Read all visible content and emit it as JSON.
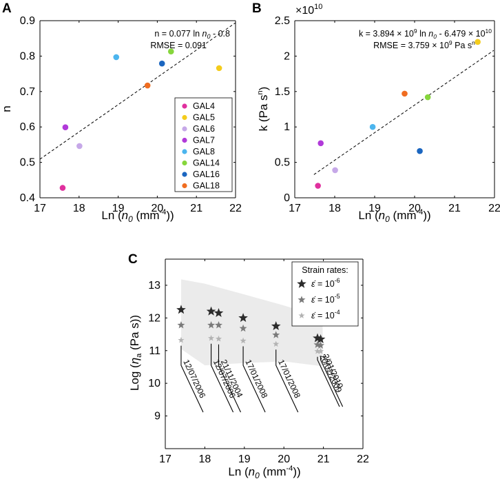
{
  "chart_data": [
    {
      "panel": "A",
      "type": "scatter",
      "xlabel": "Ln (n0 (mm-4))",
      "xlabel_parts": [
        "Ln (",
        "n",
        "0",
        " (mm",
        "-4",
        "))"
      ],
      "ylabel": "n",
      "xlim": [
        17,
        22
      ],
      "ylim": [
        0.4,
        0.9
      ],
      "xticks": [
        "17",
        "18",
        "19",
        "20",
        "21",
        "22"
      ],
      "yticks": [
        "0.4",
        "0.5",
        "0.6",
        "0.7",
        "0.8",
        "0.9"
      ],
      "annotation": [
        "n = 0.077 ln n0 - 0.8",
        "RMSE = 0.091"
      ],
      "ann_parts": [
        "n = 0.077 ln ",
        "n",
        "0",
        " - 0.8"
      ],
      "fit": {
        "slope": 0.077,
        "intercept": -0.8
      },
      "legend": "inside-lower-right",
      "series": [
        {
          "name": "GAL4",
          "color": "#e0309e",
          "x": 17.58,
          "y": 0.428
        },
        {
          "name": "GAL5",
          "color": "#f4cc1c",
          "x": 21.58,
          "y": 0.766
        },
        {
          "name": "GAL6",
          "color": "#c6a8e8",
          "x": 18.01,
          "y": 0.546
        },
        {
          "name": "GAL7",
          "color": "#b13ad9",
          "x": 17.65,
          "y": 0.599
        },
        {
          "name": "GAL8",
          "color": "#4cb5ee",
          "x": 18.95,
          "y": 0.797
        },
        {
          "name": "GAL14",
          "color": "#86d63c",
          "x": 20.35,
          "y": 0.813
        },
        {
          "name": "GAL16",
          "color": "#1b66c0",
          "x": 20.12,
          "y": 0.779
        },
        {
          "name": "GAL18",
          "color": "#f06d20",
          "x": 19.75,
          "y": 0.717
        }
      ]
    },
    {
      "panel": "B",
      "type": "scatter",
      "xlabel": "Ln (n0 (mm-4))",
      "xlabel_parts": [
        "Ln (",
        "n",
        "0",
        " (mm",
        "-4",
        "))"
      ],
      "ylabel": "k (Pa s^n)",
      "ylabel_parts": [
        "k (Pa s",
        "n",
        ")"
      ],
      "xlim": [
        17,
        22
      ],
      "ylim": [
        0,
        2.5
      ],
      "xticks": [
        "17",
        "18",
        "19",
        "20",
        "21",
        "22"
      ],
      "yticks": [
        "0",
        "0.5",
        "1",
        "1.5",
        "2",
        "2.5"
      ],
      "multiplier": [
        "×10",
        "10"
      ],
      "annotation": [
        "k = 3.894 × 10^9 ln n0 - 6.479 × 10^10",
        "RMSE = 3.759 × 10^9 Pa s^n"
      ],
      "ann1_parts": [
        "k = 3.894 × 10",
        "9",
        " ln ",
        "n",
        "0",
        " - 6.479 × 10",
        "10"
      ],
      "ann2_parts": [
        "RMSE = 3.759 × 10",
        "9",
        " Pa s",
        "n"
      ],
      "fit": {
        "slope": 0.3894,
        "intercept": -6.479
      },
      "series": [
        {
          "name": "GAL4",
          "color": "#e0309e",
          "x": 17.58,
          "y": 0.17
        },
        {
          "name": "GAL5",
          "color": "#f4cc1c",
          "x": 21.58,
          "y": 2.2
        },
        {
          "name": "GAL6",
          "color": "#c6a8e8",
          "x": 18.01,
          "y": 0.39
        },
        {
          "name": "GAL7",
          "color": "#b13ad9",
          "x": 17.65,
          "y": 0.77
        },
        {
          "name": "GAL8",
          "color": "#4cb5ee",
          "x": 18.95,
          "y": 1.0
        },
        {
          "name": "GAL14",
          "color": "#86d63c",
          "x": 20.33,
          "y": 1.42
        },
        {
          "name": "GAL16",
          "color": "#1b66c0",
          "x": 20.13,
          "y": 0.66
        },
        {
          "name": "GAL18",
          "color": "#f06d20",
          "x": 19.75,
          "y": 1.47
        }
      ]
    },
    {
      "panel": "C",
      "type": "scatter",
      "xlabel": "Ln (n0 (mm-4))",
      "xlabel_parts": [
        "Ln (",
        "n",
        "0",
        " (mm",
        "-4",
        "))"
      ],
      "ylabel": "Log (ηa (Pa s))",
      "ylabel_parts": [
        "Log (",
        "η",
        "a",
        " (Pa s))"
      ],
      "xlim": [
        17,
        22
      ],
      "ylim": [
        8,
        13.8
      ],
      "xticks": [
        "17",
        "18",
        "19",
        "20",
        "21",
        "22"
      ],
      "yticks": [
        "9",
        "10",
        "11",
        "12",
        "13"
      ],
      "legend_title": "Strain rates:",
      "legend": "inside-top-right",
      "band": {
        "upper": [
          [
            17.4,
            13.18
          ],
          [
            18.0,
            13.05
          ],
          [
            19.0,
            12.72
          ],
          [
            20.0,
            12.38
          ],
          [
            20.98,
            12.02
          ]
        ],
        "lower": [
          [
            17.4,
            11.05
          ],
          [
            18.0,
            10.55
          ],
          [
            19.0,
            10.62
          ],
          [
            20.0,
            10.67
          ],
          [
            20.98,
            10.52
          ]
        ]
      },
      "series": [
        {
          "name": "ε̇ = 10^-6",
          "rate_exp": "-6",
          "color": "#2b2b2b",
          "x": [
            17.4,
            18.16,
            18.35,
            18.97,
            19.8,
            20.85,
            20.93
          ],
          "y": [
            12.25,
            12.2,
            12.15,
            12.0,
            11.75,
            11.38,
            11.35
          ]
        },
        {
          "name": "ε̇ = 10^-5",
          "rate_exp": "-5",
          "color": "#7a7a7a",
          "x": [
            17.4,
            18.16,
            18.35,
            18.97,
            19.8,
            20.85,
            20.93
          ],
          "y": [
            11.78,
            11.78,
            11.78,
            11.68,
            11.48,
            11.18,
            11.16
          ]
        },
        {
          "name": "ε̇ = 10^-4",
          "rate_exp": "-4",
          "color": "#b3b3b3",
          "x": [
            17.4,
            18.16,
            18.35,
            18.97,
            19.8,
            20.85,
            20.93
          ],
          "y": [
            11.32,
            11.38,
            11.36,
            11.3,
            11.2,
            10.98,
            10.98
          ]
        }
      ],
      "dates": [
        {
          "label": "12/07/2006",
          "x": 17.4
        },
        {
          "label": "12/07/2006",
          "x": 18.16
        },
        {
          "label": "21/11/2004",
          "x": 18.35
        },
        {
          "label": "17/01/2008",
          "x": 18.97
        },
        {
          "label": "17/01/2008",
          "x": 19.8
        },
        {
          "label": "20/02/2009",
          "x": 20.85
        },
        {
          "label": "2/01/2010",
          "x": 20.93
        }
      ]
    }
  ],
  "panels": {
    "a": "A",
    "b": "B",
    "c": "C"
  }
}
